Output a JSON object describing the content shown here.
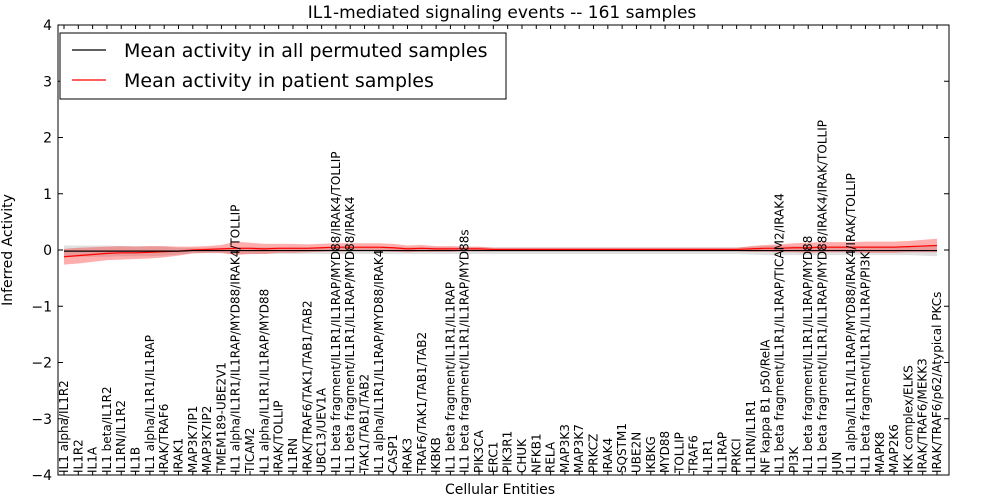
{
  "chart_data": {
    "type": "line",
    "title": "IL1-mediated signaling events -- 161 samples",
    "xlabel": "Cellular Entities",
    "ylabel": "Inferred Activity",
    "ylim": [
      -4,
      4
    ],
    "yticks": [
      4,
      3,
      2,
      1,
      0,
      -1,
      -2,
      -3,
      -4
    ],
    "ytick_labels": [
      "4",
      "3",
      "2",
      "1",
      "0",
      "−1",
      "−2",
      "−3",
      "−4"
    ],
    "legend_position": "top-left",
    "categories": [
      "IL1 alpha/IL1R2",
      "IL1R2",
      "IL1A",
      "IL1 beta/IL1R2",
      "IL1RN/IL1R2",
      "IL1B",
      "IL1 alpha/IL1R1/IL1RAP",
      "IRAK/TRAF6",
      "IRAK1",
      "MAP3K7IP1",
      "MAP3K7IP2",
      "TMEM189-UBE2V1",
      "IL1 alpha/IL1R1/IL1RAP/MYD88/IRAK4/TOLLIP",
      "TICAM2",
      "IL1 alpha/IL1R1/IL1RAP/MYD88",
      "IRAK/TOLLIP",
      "IL1RN",
      "IRAK/TRAF6/TAK1/TAB1/TAB2",
      "UBC13/UEV1A",
      "IL1 beta fragment/IL1R1/IL1RAP/MYD88/IRAK4/TOLLIP",
      "IL1 beta fragment/IL1R1/IL1RAP/MYD88/IRAK4",
      "TAK1/TAB1/TAB2",
      "IL1 alpha/IL1R1/IL1RAP/MYD88/IRAK4",
      "CASP1",
      "IRAK3",
      "TRAF6/TAK1/TAB1/TAB2",
      "IKBKB",
      "IL1 beta fragment/IL1R1/IL1RAP",
      "IL1 beta fragment/IL1R1/IL1RAP/MYD88s",
      "PIK3CA",
      "ERC1",
      "PIK3R1",
      "CHUK",
      "NFKB1",
      "RELA",
      "MAP3K3",
      "MAP3K7",
      "PRKCZ",
      "IRAK4",
      "SQSTM1",
      "UBE2N",
      "IKBKG",
      "MYD88",
      "TOLLIP",
      "TRAF6",
      "IL1R1",
      "IL1RAP",
      "PRKCI",
      "IL1RN/IL1R1",
      "NF kappa B1 p50/RelA",
      "IL1 beta fragment/IL1R1/IL1RAP/TICAM2/IRAK4",
      "PI3K",
      "IL1 beta fragment/IL1R1/IL1RAP/MYD88",
      "IL1 beta fragment/IL1R1/IL1RAP/MYD88/IRAK4/IRAK/TOLLIP",
      "JUN",
      "IL1 alpha/IL1R1/IL1RAP/MYD88/IRAK4/IRAK/TOLLIP",
      "IL1 beta fragment/IL1R1/IL1RAP/PI3K",
      "MAPK8",
      "MAP2K6",
      "IKK complex/ELKS",
      "IRAK/TRAF6/MEKK3",
      "IRAK/TRAF6/p62/Atypical PKCs"
    ],
    "series": [
      {
        "name": "Mean activity in all permuted samples",
        "color": "#000000",
        "values": [
          -0.02,
          -0.02,
          -0.02,
          -0.02,
          -0.02,
          -0.02,
          -0.02,
          -0.02,
          -0.02,
          -0.01,
          -0.01,
          -0.01,
          -0.01,
          -0.01,
          -0.01,
          -0.01,
          -0.01,
          -0.01,
          -0.01,
          -0.01,
          -0.01,
          -0.01,
          -0.01,
          -0.01,
          -0.01,
          -0.01,
          -0.01,
          -0.01,
          -0.01,
          -0.01,
          -0.01,
          -0.01,
          -0.01,
          -0.01,
          -0.01,
          -0.01,
          -0.01,
          -0.01,
          -0.01,
          -0.01,
          -0.01,
          -0.01,
          -0.01,
          -0.01,
          -0.01,
          -0.01,
          -0.01,
          -0.01,
          -0.01,
          -0.01,
          -0.01,
          -0.01,
          -0.01,
          -0.01,
          -0.01,
          -0.01,
          -0.01,
          -0.01,
          -0.01,
          -0.01,
          -0.01,
          -0.01
        ],
        "band": [
          0.1,
          0.1,
          0.1,
          0.1,
          0.09,
          0.09,
          0.09,
          0.08,
          0.06,
          0.05,
          0.05,
          0.05,
          0.06,
          0.06,
          0.06,
          0.06,
          0.06,
          0.06,
          0.06,
          0.06,
          0.06,
          0.06,
          0.06,
          0.06,
          0.06,
          0.06,
          0.06,
          0.06,
          0.06,
          0.06,
          0.06,
          0.06,
          0.06,
          0.06,
          0.06,
          0.06,
          0.06,
          0.06,
          0.06,
          0.06,
          0.06,
          0.06,
          0.06,
          0.06,
          0.06,
          0.06,
          0.06,
          0.06,
          0.07,
          0.08,
          0.08,
          0.08,
          0.08,
          0.08,
          0.08,
          0.08,
          0.08,
          0.08,
          0.08,
          0.08,
          0.09,
          0.1
        ]
      },
      {
        "name": "Mean activity in patient samples",
        "color": "#ff0000",
        "values": [
          -0.12,
          -0.1,
          -0.08,
          -0.06,
          -0.05,
          -0.05,
          -0.04,
          -0.03,
          -0.02,
          0.0,
          0.01,
          0.02,
          0.03,
          0.03,
          0.02,
          0.03,
          0.03,
          0.03,
          0.04,
          0.05,
          0.05,
          0.05,
          0.05,
          0.04,
          0.02,
          0.03,
          0.02,
          0.02,
          0.02,
          0.02,
          0.01,
          0.01,
          0.01,
          0.01,
          0.01,
          0.01,
          0.01,
          0.01,
          0.01,
          0.01,
          0.01,
          0.01,
          0.01,
          0.01,
          0.01,
          0.01,
          0.01,
          0.01,
          0.02,
          0.03,
          0.03,
          0.04,
          0.04,
          0.05,
          0.05,
          0.05,
          0.05,
          0.05,
          0.05,
          0.06,
          0.07,
          0.08
        ],
        "band": [
          0.14,
          0.14,
          0.13,
          0.12,
          0.12,
          0.11,
          0.11,
          0.1,
          0.08,
          0.06,
          0.06,
          0.07,
          0.12,
          0.1,
          0.09,
          0.08,
          0.08,
          0.07,
          0.07,
          0.07,
          0.07,
          0.07,
          0.07,
          0.07,
          0.06,
          0.06,
          0.05,
          0.05,
          0.04,
          0.04,
          0.03,
          0.03,
          0.03,
          0.03,
          0.03,
          0.03,
          0.03,
          0.03,
          0.03,
          0.03,
          0.03,
          0.03,
          0.03,
          0.03,
          0.03,
          0.03,
          0.03,
          0.03,
          0.05,
          0.06,
          0.07,
          0.08,
          0.09,
          0.09,
          0.09,
          0.09,
          0.1,
          0.1,
          0.1,
          0.1,
          0.11,
          0.12
        ]
      }
    ]
  }
}
